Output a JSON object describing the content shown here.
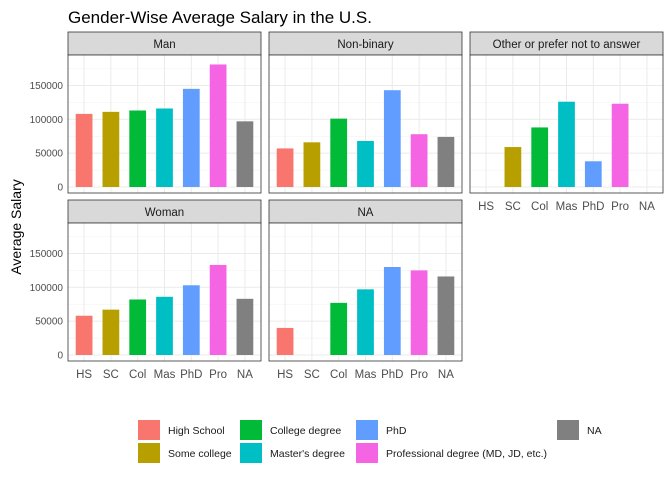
{
  "chart_data": {
    "type": "bar",
    "title": "Gender-Wise Average Salary in the U.S.",
    "xlabel": "",
    "ylabel": "Average Salary",
    "ylim": [
      0,
      195000
    ],
    "y_ticks": [
      0,
      50000,
      100000,
      150000
    ],
    "y_tick_labels": [
      "0",
      "50000",
      "100000",
      "150000"
    ],
    "grid": true,
    "legend_position": "bottom",
    "categories": [
      "HS",
      "SC",
      "Col",
      "Mas",
      "PhD",
      "Pro",
      "NA"
    ],
    "category_names": [
      "High School",
      "Some college",
      "College degree",
      "Master's degree",
      "PhD",
      "Professional degree (MD, JD, etc.)",
      "NA"
    ],
    "colors": [
      "#F8766D",
      "#B79F00",
      "#00BA38",
      "#00BFC4",
      "#619CFF",
      "#F564E3",
      "#808080"
    ],
    "panels": [
      {
        "label": "Man",
        "values": [
          108000,
          111000,
          113000,
          116000,
          145000,
          181000,
          97000
        ]
      },
      {
        "label": "Non-binary",
        "values": [
          57000,
          66000,
          101000,
          68000,
          143000,
          78000,
          74000
        ]
      },
      {
        "label": "Other or prefer not to answer",
        "values": [
          null,
          59000,
          88000,
          126000,
          38000,
          123000,
          null
        ]
      },
      {
        "label": "Woman",
        "values": [
          58000,
          67000,
          82000,
          86000,
          103000,
          133000,
          83000
        ]
      },
      {
        "label": "NA",
        "values": [
          40000,
          null,
          77000,
          97000,
          130000,
          125000,
          116000
        ]
      }
    ]
  }
}
